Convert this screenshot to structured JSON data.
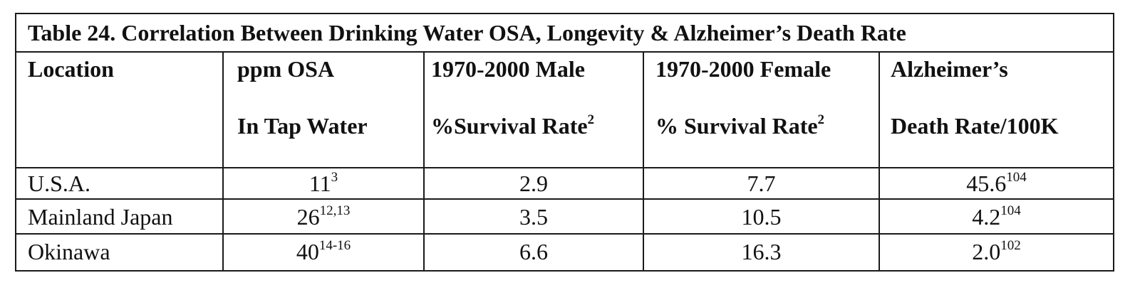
{
  "table": {
    "title": "Table 24. Correlation Between Drinking Water OSA, Longevity & Alzheimer’s Death Rate",
    "headers": [
      {
        "line1": "Location",
        "line2": "",
        "sup": ""
      },
      {
        "line1": "ppm OSA",
        "line2": "In Tap Water",
        "sup": ""
      },
      {
        "line1": "1970-2000 Male",
        "line2": "%Survival Rate",
        "sup": "2"
      },
      {
        "line1": "1970-2000 Female",
        "line2": "% Survival Rate",
        "sup": "2"
      },
      {
        "line1": "Alzheimer’s",
        "line2": "Death Rate/100K",
        "sup": ""
      }
    ],
    "rows": [
      {
        "location": "U.S.A.",
        "ppm": "11",
        "ppm_sup": "3",
        "male": "2.9",
        "female": "7.7",
        "alz": "45.6",
        "alz_sup": "104"
      },
      {
        "location": "Mainland Japan",
        "ppm": "26",
        "ppm_sup": "12,13",
        "male": "3.5",
        "female": "10.5",
        "alz": "4.2",
        "alz_sup": "104"
      },
      {
        "location": "Okinawa",
        "ppm": "40",
        "ppm_sup": "14-16",
        "male": "6.6",
        "female": "16.3",
        "alz": "2.0",
        "alz_sup": "102"
      }
    ]
  }
}
